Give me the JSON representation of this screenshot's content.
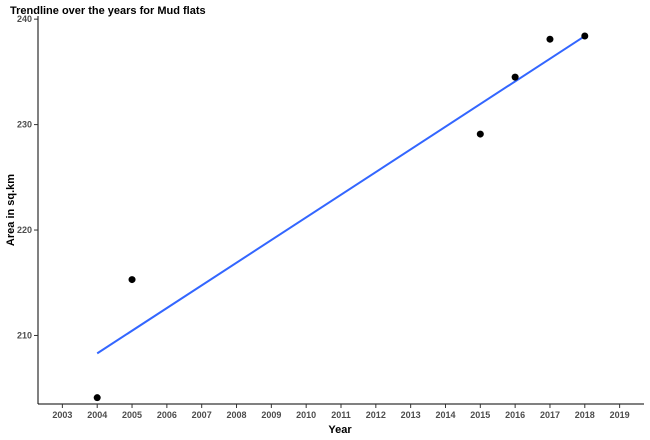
{
  "chart_data": {
    "type": "scatter",
    "title": "Trendline over the years for Mud flats",
    "xlabel": "Year",
    "ylabel": "Area in sq.km",
    "xlim": [
      2002.3,
      2019.7
    ],
    "ylim": [
      203.5,
      240.3
    ],
    "xticks": [
      2003,
      2004,
      2005,
      2006,
      2007,
      2008,
      2009,
      2010,
      2011,
      2012,
      2013,
      2014,
      2015,
      2016,
      2017,
      2018,
      2019
    ],
    "yticks": [
      210,
      220,
      230,
      240
    ],
    "grid": false,
    "legend": "none",
    "series": [
      {
        "type": "scatter",
        "color": "#000000",
        "x": [
          2004,
          2005,
          2015,
          2016,
          2017,
          2018
        ],
        "y": [
          204.1,
          215.3,
          229.1,
          234.5,
          238.1,
          238.4
        ]
      },
      {
        "type": "line",
        "color": "#3366ff",
        "x": [
          2004,
          2018
        ],
        "y": [
          208.3,
          238.4
        ]
      }
    ]
  }
}
